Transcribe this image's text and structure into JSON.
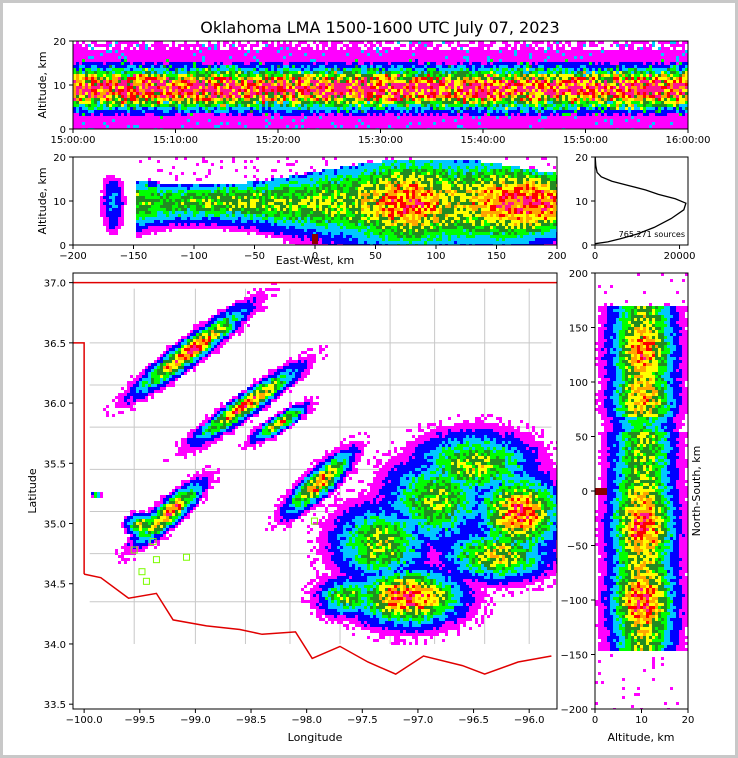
{
  "title": "Oklahoma LMA 1500-1600 UTC July 07, 2023",
  "chart_data": [
    {
      "panel": "time-height",
      "type": "heatmap",
      "xlabel": "",
      "ylabel": "Altitude, km",
      "xticks": [
        "15:00:00",
        "15:10:00",
        "15:20:00",
        "15:30:00",
        "15:40:00",
        "15:50:00",
        "16:00:00"
      ],
      "xlim": [
        "15:00:00",
        "16:00:00"
      ],
      "ylim": [
        0,
        20
      ],
      "yticks": [
        "0",
        "10",
        "20"
      ],
      "note": "source density heatmap (continuous activity between ~1 and ~17 km)"
    },
    {
      "panel": "east-west-altitude",
      "type": "heatmap",
      "xlabel": "East-West, km",
      "ylabel": "Altitude, km",
      "xlim": [
        -200,
        200
      ],
      "ylim": [
        0,
        20
      ],
      "xticks": [
        "−200",
        "−150",
        "−100",
        "−50",
        "0",
        "50",
        "100",
        "150",
        "200"
      ],
      "yticks": [
        "0",
        "10",
        "20"
      ]
    },
    {
      "panel": "altitude-histogram",
      "type": "line",
      "annotation": "765,271 sources",
      "xlim": [
        0,
        22000
      ],
      "ylim": [
        0,
        20
      ],
      "xticks": [
        "0",
        "20000"
      ],
      "yticks": [
        "0",
        "10",
        "20"
      ],
      "x": [
        0,
        3000,
        6000,
        10000,
        14000,
        18000,
        21000,
        21500,
        19000,
        15000,
        12000,
        8000,
        4000,
        1500,
        500,
        200,
        50
      ],
      "y": [
        0.3,
        0.7,
        1.4,
        2.5,
        4.0,
        6.0,
        8.0,
        9.5,
        10.5,
        11.5,
        12.5,
        13.5,
        14.5,
        15.5,
        16.5,
        18.0,
        20.0
      ]
    },
    {
      "panel": "plan-view",
      "type": "heatmap",
      "xlabel": "Longitude",
      "ylabel": "Latitude",
      "xlim": [
        -100.1,
        -95.75
      ],
      "ylim": [
        33.5,
        37.1
      ],
      "xticks": [
        "−100.0",
        "−99.5",
        "−99.0",
        "−98.5",
        "−98.0",
        "−97.5",
        "−97.0",
        "−96.5",
        "−96.0"
      ],
      "yticks": [
        "33.5",
        "34.0",
        "34.5",
        "35.0",
        "35.5",
        "36.0",
        "36.5",
        "37.0"
      ],
      "stations_color": "#7cfc00",
      "border_color": "#e00000",
      "county_color": "#c8c8c8"
    },
    {
      "panel": "north-south-altitude",
      "type": "heatmap",
      "xlabel": "Altitude, km",
      "ylabel": "North-South, km",
      "xlim": [
        0,
        20
      ],
      "ylim": [
        -200,
        200
      ],
      "xticks": [
        "0",
        "10",
        "20"
      ],
      "yticks": [
        "200",
        "150",
        "100",
        "50",
        "0",
        "−50",
        "−100",
        "−150",
        "−200"
      ]
    }
  ],
  "colors": [
    "#ff00ff",
    "#0000ff",
    "#00c8ff",
    "#00ff00",
    "#228b22",
    "#ffff00",
    "#ffa500",
    "#ff0000",
    "#ff1493",
    "#000000"
  ]
}
